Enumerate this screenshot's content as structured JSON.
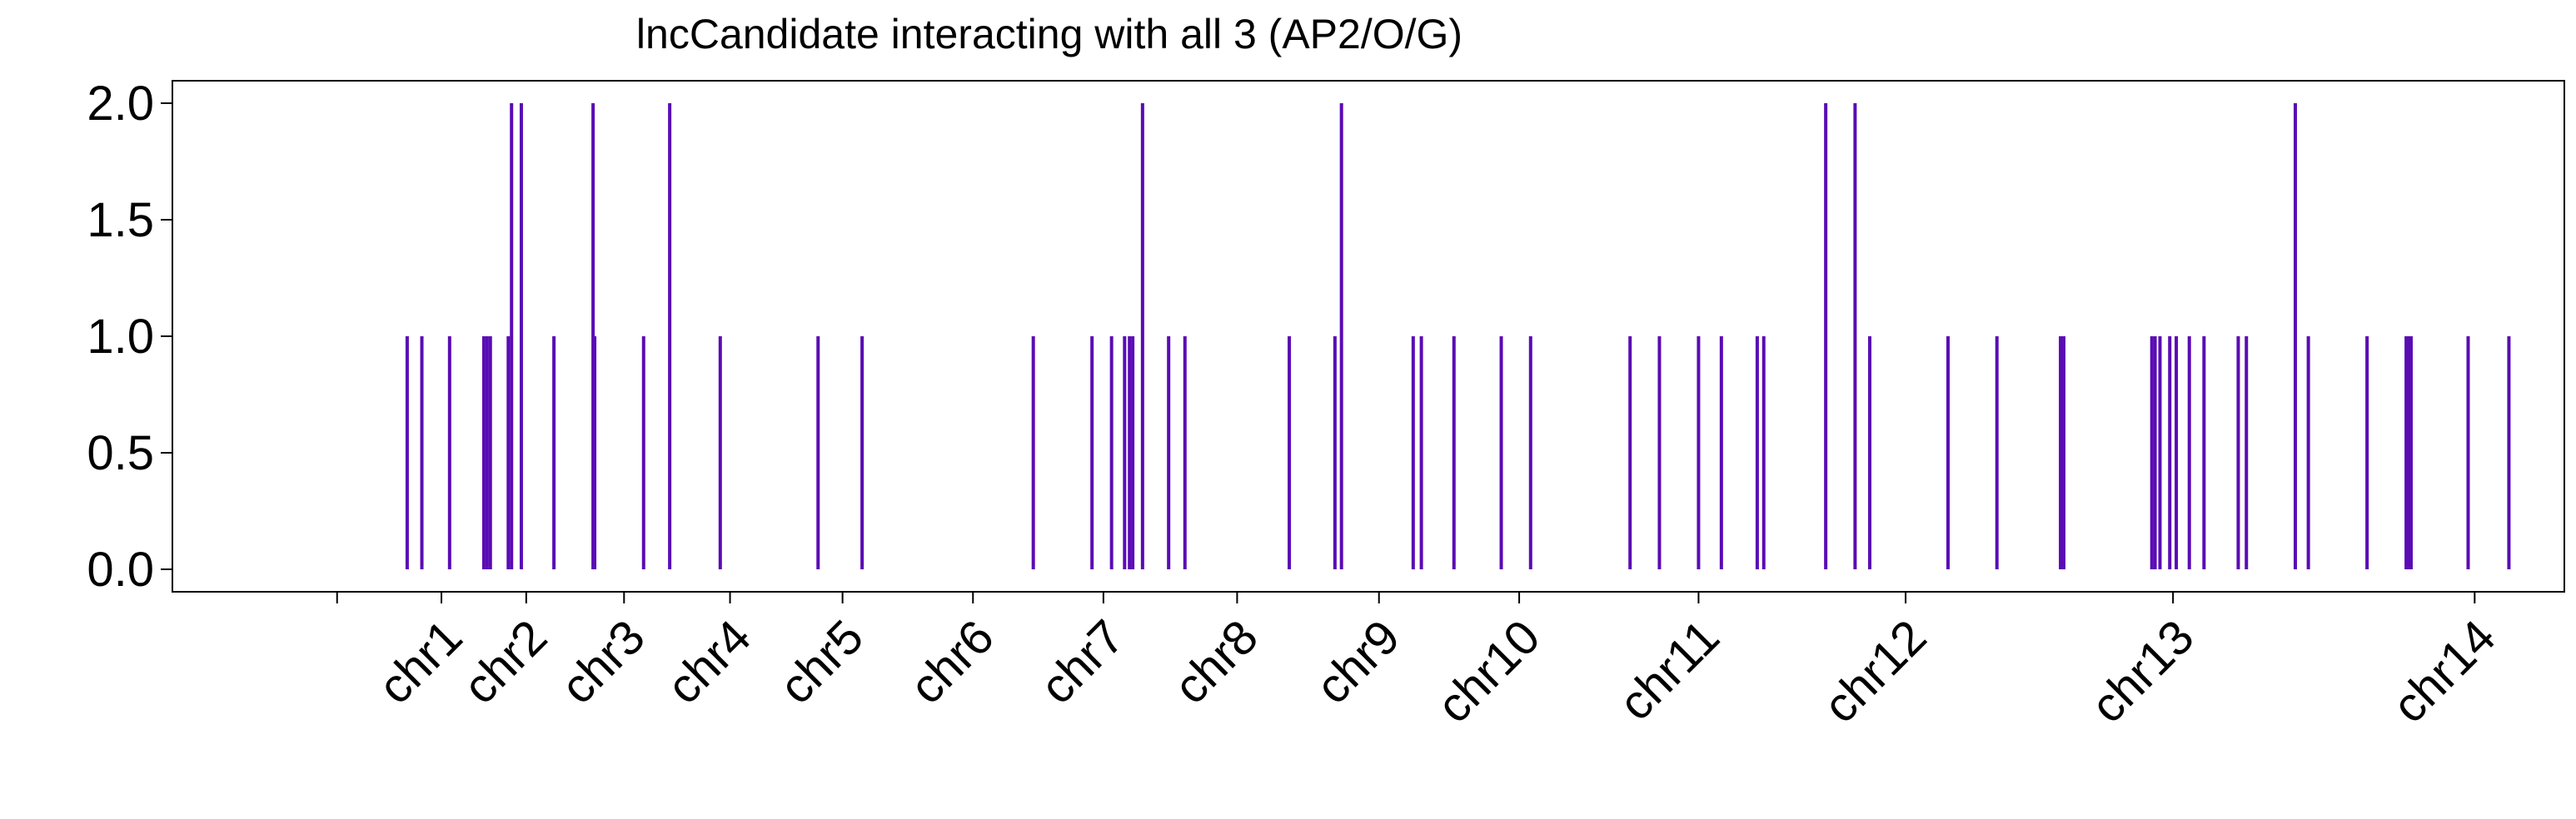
{
  "chart_data": {
    "type": "bar",
    "title": "lncCandidate interacting with all 3 (AP2/O/G)",
    "xlabel": "",
    "ylabel": "",
    "ylim": [
      0,
      2
    ],
    "y_ticks": [
      "0.0",
      "0.5",
      "1.0",
      "1.5",
      "2.0"
    ],
    "grid": false,
    "legend": "none",
    "x_ticks": [
      {
        "label": "chr1",
        "x": 0.64
      },
      {
        "label": "chr2",
        "x": 1.16
      },
      {
        "label": "chr3",
        "x": 1.76
      },
      {
        "label": "chr4",
        "x": 2.41
      },
      {
        "label": "chr5",
        "x": 3.1
      },
      {
        "label": "chr6",
        "x": 3.9
      },
      {
        "label": "chr7",
        "x": 4.7
      },
      {
        "label": "chr8",
        "x": 5.52
      },
      {
        "label": "chr9",
        "x": 6.39
      },
      {
        "label": "chr10",
        "x": 7.25
      },
      {
        "label": "chr11",
        "x": 8.35
      },
      {
        "label": "chr12",
        "x": 9.62
      },
      {
        "label": "chr13",
        "x": 11.26
      },
      {
        "label": "chr14",
        "x": 13.11
      }
    ],
    "x_boundaries": [
      0,
      0.64,
      1.16,
      1.76,
      2.41,
      3.1,
      3.9,
      4.7,
      5.52,
      6.39,
      7.25,
      8.35,
      9.62,
      11.26,
      13.11
    ],
    "xlim": [
      -1.01,
      13.66
    ],
    "color": "#5a0bb4",
    "points": [
      {
        "x": 0.43,
        "y": 1
      },
      {
        "x": 0.52,
        "y": 1
      },
      {
        "x": 0.69,
        "y": 1
      },
      {
        "x": 0.9,
        "y": 1
      },
      {
        "x": 0.92,
        "y": 1
      },
      {
        "x": 0.94,
        "y": 1
      },
      {
        "x": 1.05,
        "y": 1
      },
      {
        "x": 1.07,
        "y": 2
      },
      {
        "x": 1.13,
        "y": 2
      },
      {
        "x": 1.33,
        "y": 1
      },
      {
        "x": 1.57,
        "y": 2
      },
      {
        "x": 1.58,
        "y": 1
      },
      {
        "x": 1.88,
        "y": 1
      },
      {
        "x": 2.04,
        "y": 2
      },
      {
        "x": 2.35,
        "y": 1
      },
      {
        "x": 2.95,
        "y": 1
      },
      {
        "x": 3.22,
        "y": 1
      },
      {
        "x": 4.27,
        "y": 1
      },
      {
        "x": 4.63,
        "y": 1
      },
      {
        "x": 4.75,
        "y": 1
      },
      {
        "x": 4.83,
        "y": 1
      },
      {
        "x": 4.86,
        "y": 1
      },
      {
        "x": 4.88,
        "y": 1
      },
      {
        "x": 4.94,
        "y": 2
      },
      {
        "x": 5.1,
        "y": 1
      },
      {
        "x": 5.2,
        "y": 1
      },
      {
        "x": 5.84,
        "y": 1
      },
      {
        "x": 6.12,
        "y": 1
      },
      {
        "x": 6.16,
        "y": 2
      },
      {
        "x": 6.6,
        "y": 1
      },
      {
        "x": 6.65,
        "y": 1
      },
      {
        "x": 6.85,
        "y": 1
      },
      {
        "x": 7.14,
        "y": 1
      },
      {
        "x": 7.32,
        "y": 1
      },
      {
        "x": 7.93,
        "y": 1
      },
      {
        "x": 8.11,
        "y": 1
      },
      {
        "x": 8.35,
        "y": 1
      },
      {
        "x": 8.49,
        "y": 1
      },
      {
        "x": 8.71,
        "y": 1
      },
      {
        "x": 8.75,
        "y": 1
      },
      {
        "x": 9.13,
        "y": 2
      },
      {
        "x": 9.31,
        "y": 2
      },
      {
        "x": 9.4,
        "y": 1
      },
      {
        "x": 9.88,
        "y": 1
      },
      {
        "x": 10.18,
        "y": 1
      },
      {
        "x": 10.57,
        "y": 1
      },
      {
        "x": 10.59,
        "y": 1
      },
      {
        "x": 11.13,
        "y": 1
      },
      {
        "x": 11.15,
        "y": 1
      },
      {
        "x": 11.18,
        "y": 1
      },
      {
        "x": 11.24,
        "y": 1
      },
      {
        "x": 11.28,
        "y": 1
      },
      {
        "x": 11.36,
        "y": 1
      },
      {
        "x": 11.45,
        "y": 1
      },
      {
        "x": 11.66,
        "y": 1
      },
      {
        "x": 11.71,
        "y": 1
      },
      {
        "x": 12.01,
        "y": 2
      },
      {
        "x": 12.09,
        "y": 1
      },
      {
        "x": 12.45,
        "y": 1
      },
      {
        "x": 12.69,
        "y": 1
      },
      {
        "x": 12.71,
        "y": 1
      },
      {
        "x": 12.72,
        "y": 1
      },
      {
        "x": 13.07,
        "y": 1
      },
      {
        "x": 13.32,
        "y": 1
      }
    ]
  }
}
